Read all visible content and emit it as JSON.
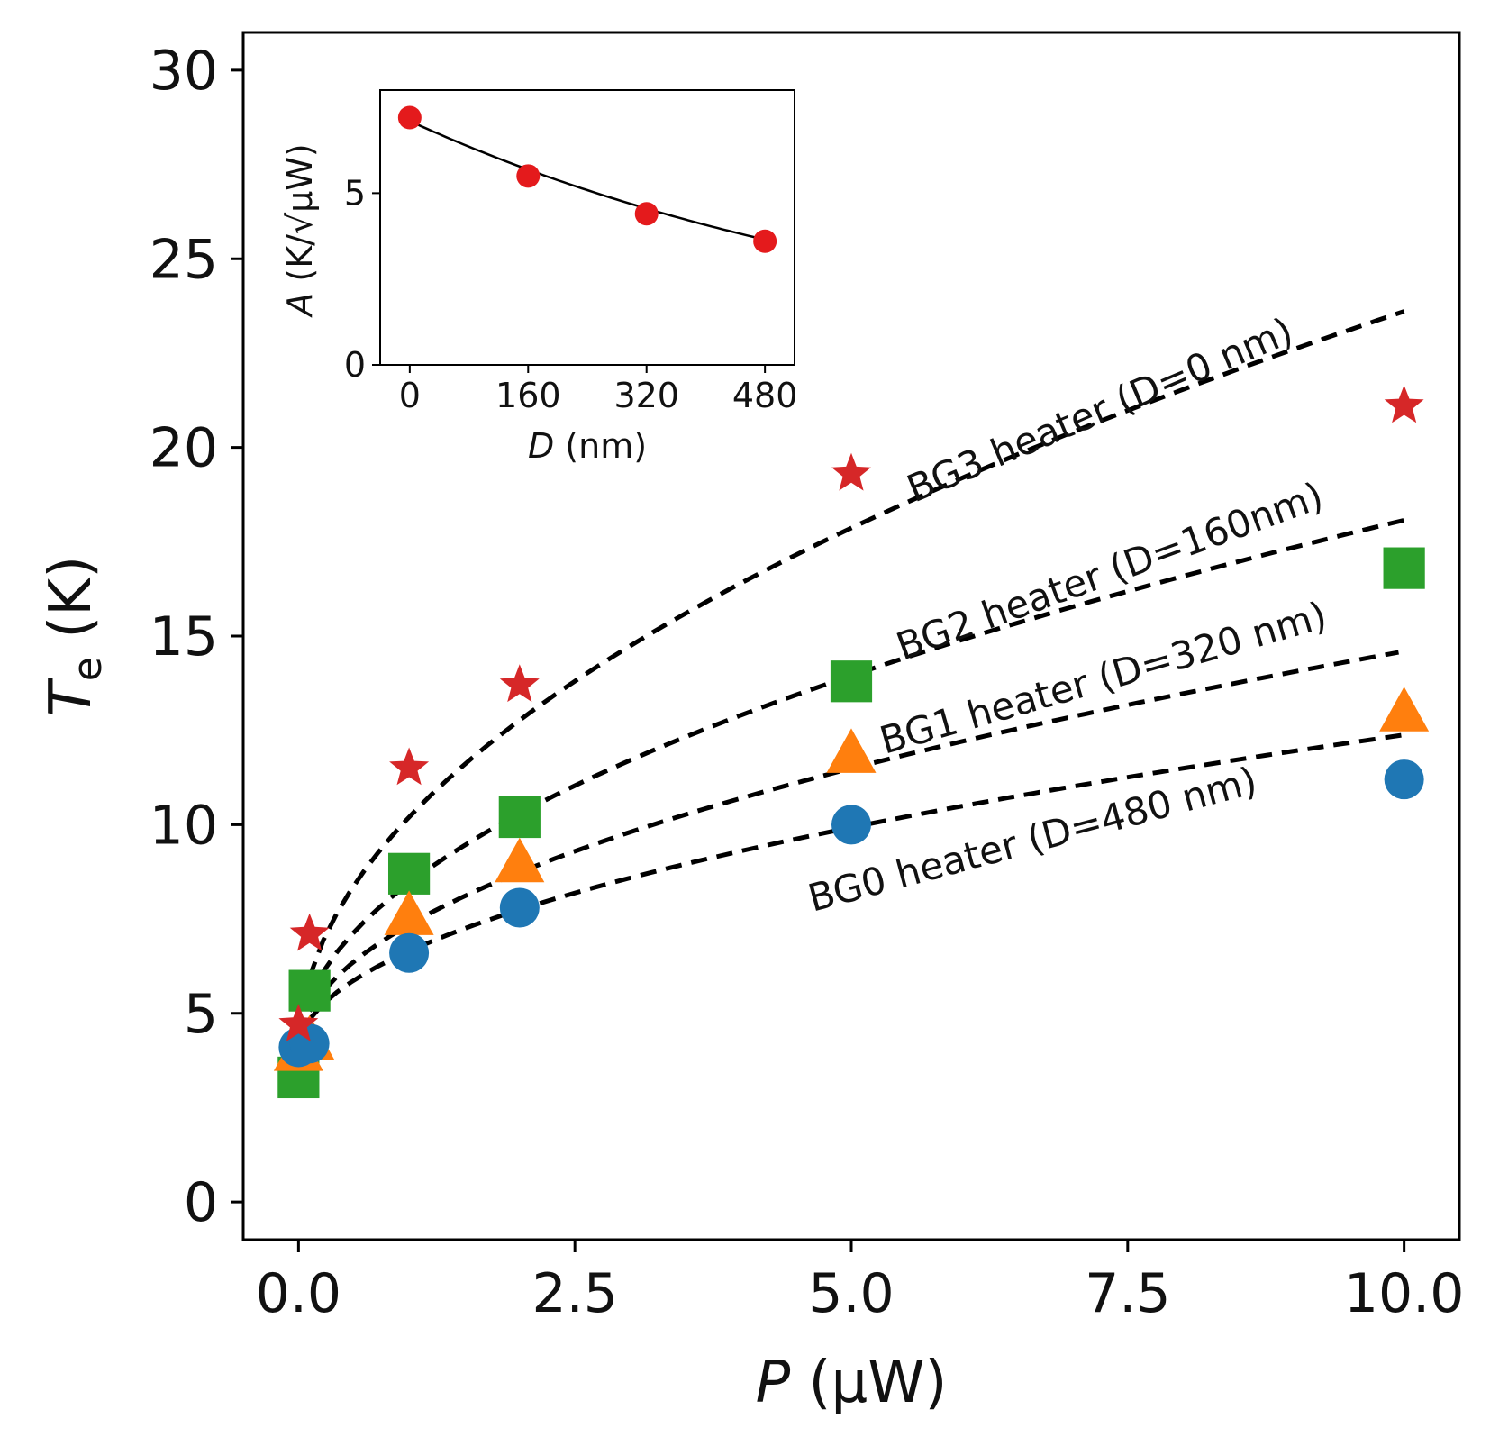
{
  "chart_data": {
    "type": "scatter",
    "xlabel": "P (μW)",
    "xlabel_var": "P",
    "xlabel_unit": " (μW)",
    "ylabel": "Te (K)",
    "ylabel_var": "T",
    "ylabel_sub": "e",
    "ylabel_unit": " (K)",
    "xlim": [
      -0.5,
      10.5
    ],
    "ylim": [
      -1,
      31
    ],
    "xticks": [
      0.0,
      2.5,
      5.0,
      7.5,
      10.0
    ],
    "xtick_labels": [
      "0.0",
      "2.5",
      "5.0",
      "7.5",
      "10.0"
    ],
    "yticks": [
      0,
      5,
      10,
      15,
      20,
      25,
      30
    ],
    "ytick_labels": [
      "0",
      "5",
      "10",
      "15",
      "20",
      "25",
      "30"
    ],
    "grid": false,
    "series": [
      {
        "name": "BG3",
        "marker": "star",
        "color": "#d62728",
        "x": [
          0.0,
          0.1,
          1.0,
          2.0,
          5.0,
          10.0
        ],
        "y": [
          4.7,
          7.1,
          11.5,
          13.7,
          19.3,
          21.1
        ]
      },
      {
        "name": "BG2",
        "marker": "square",
        "color": "#2ca02c",
        "x": [
          0.0,
          0.1,
          1.0,
          2.0,
          5.0,
          10.0
        ],
        "y": [
          3.3,
          5.6,
          8.7,
          10.2,
          13.8,
          16.8
        ]
      },
      {
        "name": "BG1",
        "marker": "triangle",
        "color": "#ff7f0e",
        "x": [
          0.0,
          0.1,
          1.0,
          2.0,
          5.0,
          10.0
        ],
        "y": [
          4.0,
          4.3,
          7.6,
          9.0,
          11.9,
          13.0
        ]
      },
      {
        "name": "BG0",
        "marker": "circle",
        "color": "#1f77b4",
        "x": [
          0.0,
          0.1,
          1.0,
          2.0,
          5.0,
          10.0
        ],
        "y": [
          4.1,
          4.2,
          6.6,
          7.8,
          10.0,
          11.2
        ]
      }
    ],
    "fits": [
      {
        "label": "BG3 heater (D=0 nm)",
        "T0": 4.0,
        "A": 6.2,
        "xmin": 0.1,
        "xmax": 10.0
      },
      {
        "label": "BG2 heater (D=160nm)",
        "T0": 4.0,
        "A": 4.45,
        "xmin": 0.1,
        "xmax": 10.0
      },
      {
        "label": "BG1 heater (D=320 nm)",
        "T0": 4.0,
        "A": 3.35,
        "xmin": 0.1,
        "xmax": 9.95
      },
      {
        "label": "BG0 heater (D=480 nm)",
        "T0": 4.0,
        "A": 2.65,
        "xmin": 0.1,
        "xmax": 10.0
      }
    ],
    "inset": {
      "type": "scatter",
      "xlabel": "D (nm)",
      "xlabel_var": "D",
      "xlabel_unit": " (nm)",
      "ylabel": "A (K/√μW)",
      "ylabel_var": "A",
      "ylabel_unit": " (K/√μW)",
      "xlim": [
        -40,
        520
      ],
      "ylim": [
        0,
        8
      ],
      "xticks": [
        0,
        160,
        320,
        480
      ],
      "xtick_labels": [
        "0",
        "160",
        "320",
        "480"
      ],
      "yticks": [
        0,
        5
      ],
      "ytick_labels": [
        "0",
        "5"
      ],
      "points": {
        "x": [
          0,
          160,
          320,
          480
        ],
        "y": [
          7.2,
          5.5,
          4.4,
          3.6
        ],
        "color": "#e41a1c"
      },
      "fit": {
        "type": "exponential",
        "a": 7.1,
        "decay_length": 720
      }
    }
  }
}
